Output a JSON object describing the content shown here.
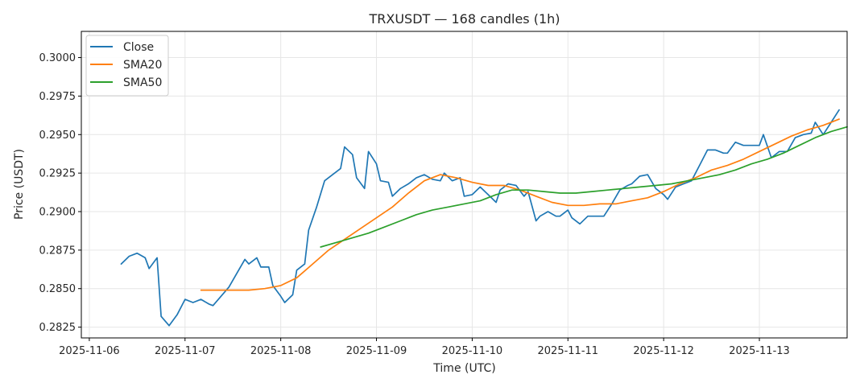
{
  "chart_data": {
    "type": "line",
    "title": "TRXUSDT — 168 candles (1h)",
    "xlabel": "Time (UTC)",
    "ylabel": "Price (USDT)",
    "x_ticks": [
      "2025-11-06",
      "2025-11-07",
      "2025-11-08",
      "2025-11-09",
      "2025-11-10",
      "2025-11-11",
      "2025-11-12",
      "2025-11-13"
    ],
    "y_ticks": [
      "0.2825",
      "0.2850",
      "0.2875",
      "0.2900",
      "0.2925",
      "0.2950",
      "0.2975",
      "0.3000"
    ],
    "xlim": [
      "2025-11-05 22:00",
      "2025-11-13 22:00"
    ],
    "ylim": [
      0.2818,
      0.3017
    ],
    "grid": true,
    "legend_position": "top-left",
    "series": [
      {
        "name": "Close",
        "color": "#1f77b4",
        "points": [
          [
            "2025-11-06 08:00",
            0.2866
          ],
          [
            "2025-11-06 10:00",
            0.2871
          ],
          [
            "2025-11-06 12:00",
            0.2873
          ],
          [
            "2025-11-06 14:00",
            0.287
          ],
          [
            "2025-11-06 15:00",
            0.2863
          ],
          [
            "2025-11-06 17:00",
            0.287
          ],
          [
            "2025-11-06 18:00",
            0.2832
          ],
          [
            "2025-11-06 20:00",
            0.2826
          ],
          [
            "2025-11-06 22:00",
            0.2833
          ],
          [
            "2025-11-07 00:00",
            0.2843
          ],
          [
            "2025-11-07 02:00",
            0.2841
          ],
          [
            "2025-11-07 04:00",
            0.2843
          ],
          [
            "2025-11-07 06:00",
            0.284
          ],
          [
            "2025-11-07 07:00",
            0.2839
          ],
          [
            "2025-11-07 09:00",
            0.2845
          ],
          [
            "2025-11-07 11:00",
            0.2851
          ],
          [
            "2025-11-07 13:00",
            0.286
          ],
          [
            "2025-11-07 15:00",
            0.2869
          ],
          [
            "2025-11-07 16:00",
            0.2866
          ],
          [
            "2025-11-07 18:00",
            0.287
          ],
          [
            "2025-11-07 19:00",
            0.2864
          ],
          [
            "2025-11-07 21:00",
            0.2864
          ],
          [
            "2025-11-07 22:00",
            0.2852
          ],
          [
            "2025-11-08 00:00",
            0.2845
          ],
          [
            "2025-11-08 01:00",
            0.2841
          ],
          [
            "2025-11-08 03:00",
            0.2846
          ],
          [
            "2025-11-08 04:00",
            0.2862
          ],
          [
            "2025-11-08 06:00",
            0.2866
          ],
          [
            "2025-11-08 07:00",
            0.2888
          ],
          [
            "2025-11-08 09:00",
            0.2903
          ],
          [
            "2025-11-08 11:00",
            0.292
          ],
          [
            "2025-11-08 13:00",
            0.2924
          ],
          [
            "2025-11-08 15:00",
            0.2928
          ],
          [
            "2025-11-08 16:00",
            0.2942
          ],
          [
            "2025-11-08 18:00",
            0.2937
          ],
          [
            "2025-11-08 19:00",
            0.2922
          ],
          [
            "2025-11-08 21:00",
            0.2915
          ],
          [
            "2025-11-08 22:00",
            0.2939
          ],
          [
            "2025-11-09 00:00",
            0.2931
          ],
          [
            "2025-11-09 01:00",
            0.292
          ],
          [
            "2025-11-09 03:00",
            0.2919
          ],
          [
            "2025-11-09 04:00",
            0.291
          ],
          [
            "2025-11-09 06:00",
            0.2915
          ],
          [
            "2025-11-09 08:00",
            0.2918
          ],
          [
            "2025-11-09 10:00",
            0.2922
          ],
          [
            "2025-11-09 12:00",
            0.2924
          ],
          [
            "2025-11-09 14:00",
            0.2921
          ],
          [
            "2025-11-09 16:00",
            0.292
          ],
          [
            "2025-11-09 17:00",
            0.2925
          ],
          [
            "2025-11-09 19:00",
            0.292
          ],
          [
            "2025-11-09 21:00",
            0.2922
          ],
          [
            "2025-11-09 22:00",
            0.291
          ],
          [
            "2025-11-10 00:00",
            0.2911
          ],
          [
            "2025-11-10 02:00",
            0.2916
          ],
          [
            "2025-11-10 04:00",
            0.2911
          ],
          [
            "2025-11-10 06:00",
            0.2906
          ],
          [
            "2025-11-10 07:00",
            0.2914
          ],
          [
            "2025-11-10 09:00",
            0.2918
          ],
          [
            "2025-11-10 11:00",
            0.2917
          ],
          [
            "2025-11-10 13:00",
            0.291
          ],
          [
            "2025-11-10 14:00",
            0.2913
          ],
          [
            "2025-11-10 16:00",
            0.2894
          ],
          [
            "2025-11-10 17:00",
            0.2897
          ],
          [
            "2025-11-10 19:00",
            0.29
          ],
          [
            "2025-11-10 21:00",
            0.2897
          ],
          [
            "2025-11-10 22:00",
            0.2897
          ],
          [
            "2025-11-11 00:00",
            0.2901
          ],
          [
            "2025-11-11 01:00",
            0.2896
          ],
          [
            "2025-11-11 03:00",
            0.2892
          ],
          [
            "2025-11-11 05:00",
            0.2897
          ],
          [
            "2025-11-11 07:00",
            0.2897
          ],
          [
            "2025-11-11 09:00",
            0.2897
          ],
          [
            "2025-11-11 11:00",
            0.2905
          ],
          [
            "2025-11-11 13:00",
            0.2914
          ],
          [
            "2025-11-11 15:00",
            0.2917
          ],
          [
            "2025-11-11 16:00",
            0.2918
          ],
          [
            "2025-11-11 18:00",
            0.2923
          ],
          [
            "2025-11-11 20:00",
            0.2924
          ],
          [
            "2025-11-11 22:00",
            0.2915
          ],
          [
            "2025-11-12 00:00",
            0.2911
          ],
          [
            "2025-11-12 01:00",
            0.2908
          ],
          [
            "2025-11-12 03:00",
            0.2916
          ],
          [
            "2025-11-12 05:00",
            0.2918
          ],
          [
            "2025-11-12 07:00",
            0.292
          ],
          [
            "2025-11-12 09:00",
            0.293
          ],
          [
            "2025-11-12 11:00",
            0.294
          ],
          [
            "2025-11-12 13:00",
            0.294
          ],
          [
            "2025-11-12 15:00",
            0.2938
          ],
          [
            "2025-11-12 16:00",
            0.2938
          ],
          [
            "2025-11-12 18:00",
            0.2945
          ],
          [
            "2025-11-12 20:00",
            0.2943
          ],
          [
            "2025-11-12 22:00",
            0.2943
          ],
          [
            "2025-11-13 00:00",
            0.2943
          ],
          [
            "2025-11-13 01:00",
            0.295
          ],
          [
            "2025-11-13 03:00",
            0.2935
          ],
          [
            "2025-11-13 05:00",
            0.2939
          ],
          [
            "2025-11-13 07:00",
            0.2939
          ],
          [
            "2025-11-13 09:00",
            0.2948
          ],
          [
            "2025-11-13 11:00",
            0.295
          ],
          [
            "2025-11-13 13:00",
            0.2951
          ],
          [
            "2025-11-13 14:00",
            0.2958
          ],
          [
            "2025-11-13 16:00",
            0.295
          ],
          [
            "2025-11-13 18:00",
            0.2958
          ],
          [
            "2025-11-13 20:00",
            0.2966
          ]
        ]
      },
      {
        "name": "SMA20",
        "color": "#ff7f0e",
        "points": [
          [
            "2025-11-07 04:00",
            0.2849
          ],
          [
            "2025-11-07 08:00",
            0.2849
          ],
          [
            "2025-11-07 12:00",
            0.2849
          ],
          [
            "2025-11-07 16:00",
            0.2849
          ],
          [
            "2025-11-07 20:00",
            0.285
          ],
          [
            "2025-11-08 00:00",
            0.2852
          ],
          [
            "2025-11-08 04:00",
            0.2857
          ],
          [
            "2025-11-08 08:00",
            0.2866
          ],
          [
            "2025-11-08 12:00",
            0.2875
          ],
          [
            "2025-11-08 16:00",
            0.2882
          ],
          [
            "2025-11-08 20:00",
            0.2889
          ],
          [
            "2025-11-09 00:00",
            0.2896
          ],
          [
            "2025-11-09 04:00",
            0.2903
          ],
          [
            "2025-11-09 08:00",
            0.2912
          ],
          [
            "2025-11-09 12:00",
            0.292
          ],
          [
            "2025-11-09 16:00",
            0.2924
          ],
          [
            "2025-11-09 20:00",
            0.2922
          ],
          [
            "2025-11-10 00:00",
            0.2919
          ],
          [
            "2025-11-10 04:00",
            0.2917
          ],
          [
            "2025-11-10 08:00",
            0.2917
          ],
          [
            "2025-11-10 12:00",
            0.2914
          ],
          [
            "2025-11-10 16:00",
            0.291
          ],
          [
            "2025-11-10 20:00",
            0.2906
          ],
          [
            "2025-11-11 00:00",
            0.2904
          ],
          [
            "2025-11-11 04:00",
            0.2904
          ],
          [
            "2025-11-11 08:00",
            0.2905
          ],
          [
            "2025-11-11 12:00",
            0.2905
          ],
          [
            "2025-11-11 16:00",
            0.2907
          ],
          [
            "2025-11-11 20:00",
            0.2909
          ],
          [
            "2025-11-12 00:00",
            0.2913
          ],
          [
            "2025-11-12 04:00",
            0.2918
          ],
          [
            "2025-11-12 08:00",
            0.2922
          ],
          [
            "2025-11-12 12:00",
            0.2927
          ],
          [
            "2025-11-12 16:00",
            0.293
          ],
          [
            "2025-11-12 20:00",
            0.2934
          ],
          [
            "2025-11-13 00:00",
            0.2939
          ],
          [
            "2025-11-13 04:00",
            0.2944
          ],
          [
            "2025-11-13 08:00",
            0.2949
          ],
          [
            "2025-11-13 12:00",
            0.2953
          ],
          [
            "2025-11-13 16:00",
            0.2956
          ],
          [
            "2025-11-13 20:00",
            0.296
          ]
        ]
      },
      {
        "name": "SMA50",
        "color": "#2ca02c",
        "points": [
          [
            "2025-11-08 10:00",
            0.2877
          ],
          [
            "2025-11-08 14:00",
            0.288
          ],
          [
            "2025-11-08 18:00",
            0.2883
          ],
          [
            "2025-11-08 22:00",
            0.2886
          ],
          [
            "2025-11-09 02:00",
            0.289
          ],
          [
            "2025-11-09 06:00",
            0.2894
          ],
          [
            "2025-11-09 10:00",
            0.2898
          ],
          [
            "2025-11-09 14:00",
            0.2901
          ],
          [
            "2025-11-09 18:00",
            0.2903
          ],
          [
            "2025-11-09 22:00",
            0.2905
          ],
          [
            "2025-11-10 02:00",
            0.2907
          ],
          [
            "2025-11-10 06:00",
            0.2911
          ],
          [
            "2025-11-10 10:00",
            0.2914
          ],
          [
            "2025-11-10 14:00",
            0.2914
          ],
          [
            "2025-11-10 18:00",
            0.2913
          ],
          [
            "2025-11-10 22:00",
            0.2912
          ],
          [
            "2025-11-11 02:00",
            0.2912
          ],
          [
            "2025-11-11 06:00",
            0.2913
          ],
          [
            "2025-11-11 10:00",
            0.2914
          ],
          [
            "2025-11-11 14:00",
            0.2915
          ],
          [
            "2025-11-11 18:00",
            0.2916
          ],
          [
            "2025-11-11 22:00",
            0.2917
          ],
          [
            "2025-11-12 02:00",
            0.2918
          ],
          [
            "2025-11-12 06:00",
            0.292
          ],
          [
            "2025-11-12 10:00",
            0.2922
          ],
          [
            "2025-11-12 14:00",
            0.2924
          ],
          [
            "2025-11-12 18:00",
            0.2927
          ],
          [
            "2025-11-12 22:00",
            0.2931
          ],
          [
            "2025-11-13 02:00",
            0.2934
          ],
          [
            "2025-11-13 06:00",
            0.2938
          ],
          [
            "2025-11-13 10:00",
            0.2943
          ],
          [
            "2025-11-13 14:00",
            0.2948
          ],
          [
            "2025-11-13 18:00",
            0.2952
          ],
          [
            "2025-11-13 22:00",
            0.2955
          ]
        ]
      }
    ]
  }
}
